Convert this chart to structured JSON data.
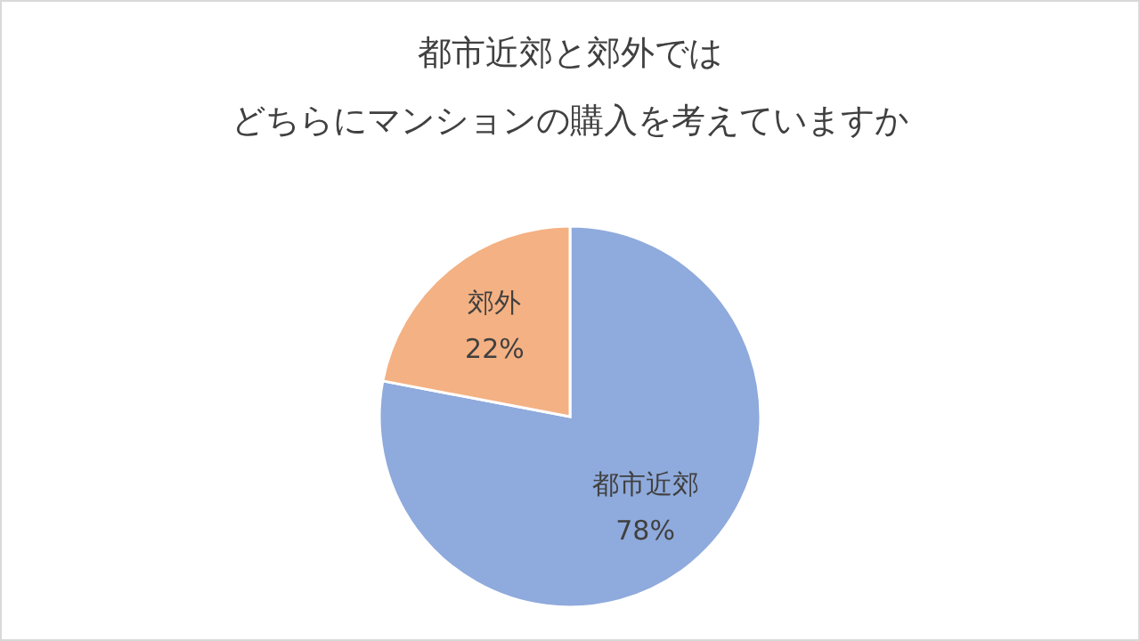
{
  "chart_data": {
    "type": "pie",
    "title": "都市近郊と郊外では",
    "subtitle": "どちらにマンションの購入を考えていますか",
    "categories": [
      "都市近郊",
      "郊外"
    ],
    "values": [
      78,
      22
    ],
    "colors": [
      "#8faadc",
      "#f4b183"
    ],
    "value_labels": [
      "78%",
      "22%"
    ]
  }
}
